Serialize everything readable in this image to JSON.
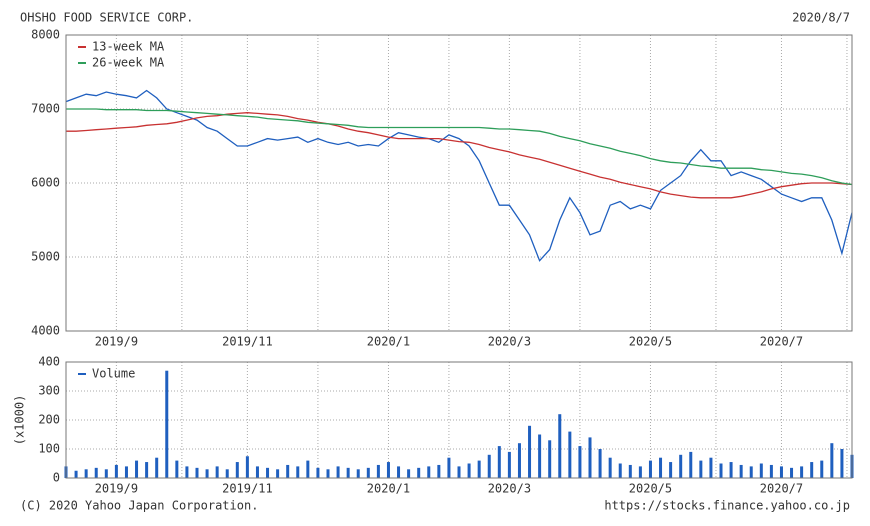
{
  "header": {
    "title": "OHSHO FOOD SERVICE CORP.",
    "date": "2020/8/7"
  },
  "footer": {
    "copyright": "(C) 2020 Yahoo Japan Corporation.",
    "url": "https://stocks.finance.yahoo.co.jp"
  },
  "chart_data": [
    {
      "type": "line",
      "categories": [
        null,
        null,
        null,
        null,
        null,
        "2019/9",
        null,
        null,
        null,
        null,
        null,
        null,
        null,
        null,
        null,
        null,
        null,
        null,
        "2019/11",
        null,
        null,
        null,
        null,
        null,
        null,
        null,
        null,
        null,
        null,
        null,
        null,
        null,
        "2020/1",
        null,
        null,
        null,
        null,
        null,
        null,
        null,
        null,
        null,
        null,
        null,
        "2020/3",
        null,
        null,
        null,
        null,
        null,
        null,
        null,
        null,
        null,
        null,
        null,
        null,
        null,
        "2020/5",
        null,
        null,
        null,
        null,
        null,
        null,
        null,
        null,
        null,
        null,
        null,
        null,
        "2020/7",
        null,
        null,
        null,
        null,
        null,
        null,
        null
      ],
      "ylim": [
        4000,
        8000
      ],
      "yticks": [
        4000,
        5000,
        6000,
        7000,
        8000
      ],
      "grid": true,
      "legend": "upper left",
      "series": [
        {
          "color": "#1f5fbf",
          "values": [
            7100,
            7150,
            7200,
            7180,
            7230,
            7200,
            7180,
            7150,
            7250,
            7150,
            7000,
            6950,
            6900,
            6850,
            6750,
            6700,
            6600,
            6500,
            6500,
            6550,
            6600,
            6580,
            6600,
            6620,
            6550,
            6600,
            6550,
            6520,
            6550,
            6500,
            6520,
            6500,
            6600,
            6680,
            6650,
            6620,
            6600,
            6550,
            6650,
            6600,
            6500,
            6300,
            6000,
            5700,
            5700,
            5500,
            5300,
            4950,
            5100,
            5500,
            5800,
            5600,
            5300,
            5350,
            5700,
            5750,
            5650,
            5700,
            5650,
            5900,
            6000,
            6100,
            6300,
            6450,
            6300,
            6300,
            6100,
            6150,
            6100,
            6050,
            5950,
            5850,
            5800,
            5750,
            5800,
            5800,
            5500,
            5050,
            5600
          ]
        },
        {
          "name": "13-week MA",
          "color": "#c83232",
          "values": [
            6700,
            6700,
            6710,
            6720,
            6730,
            6740,
            6750,
            6760,
            6780,
            6790,
            6800,
            6820,
            6850,
            6880,
            6900,
            6910,
            6930,
            6940,
            6950,
            6940,
            6930,
            6920,
            6900,
            6870,
            6850,
            6820,
            6800,
            6770,
            6730,
            6700,
            6680,
            6650,
            6620,
            6600,
            6600,
            6600,
            6600,
            6600,
            6580,
            6560,
            6550,
            6520,
            6480,
            6450,
            6420,
            6380,
            6350,
            6320,
            6280,
            6240,
            6200,
            6160,
            6120,
            6080,
            6050,
            6010,
            5980,
            5950,
            5920,
            5880,
            5850,
            5830,
            5810,
            5800,
            5800,
            5800,
            5800,
            5820,
            5850,
            5880,
            5920,
            5950,
            5970,
            5990,
            6000,
            6000,
            6000,
            5990,
            5980
          ]
        },
        {
          "name": "26-week MA",
          "color": "#2e9e5a",
          "values": [
            7000,
            7000,
            7000,
            7000,
            6990,
            6990,
            6990,
            6990,
            6980,
            6980,
            6980,
            6970,
            6960,
            6950,
            6940,
            6930,
            6920,
            6910,
            6900,
            6890,
            6870,
            6860,
            6850,
            6840,
            6820,
            6810,
            6800,
            6790,
            6780,
            6760,
            6750,
            6750,
            6750,
            6750,
            6750,
            6750,
            6750,
            6750,
            6750,
            6750,
            6750,
            6750,
            6740,
            6730,
            6730,
            6720,
            6710,
            6700,
            6670,
            6630,
            6600,
            6570,
            6530,
            6500,
            6470,
            6430,
            6400,
            6370,
            6330,
            6300,
            6280,
            6270,
            6250,
            6230,
            6220,
            6200,
            6200,
            6200,
            6200,
            6180,
            6170,
            6150,
            6130,
            6120,
            6100,
            6070,
            6030,
            6000,
            5980
          ]
        }
      ]
    },
    {
      "type": "bar",
      "categories": [
        null,
        null,
        null,
        null,
        null,
        "2019/9",
        null,
        null,
        null,
        null,
        null,
        null,
        null,
        null,
        null,
        null,
        null,
        null,
        "2019/11",
        null,
        null,
        null,
        null,
        null,
        null,
        null,
        null,
        null,
        null,
        null,
        null,
        null,
        "2020/1",
        null,
        null,
        null,
        null,
        null,
        null,
        null,
        null,
        null,
        null,
        null,
        "2020/3",
        null,
        null,
        null,
        null,
        null,
        null,
        null,
        null,
        null,
        null,
        null,
        null,
        null,
        "2020/5",
        null,
        null,
        null,
        null,
        null,
        null,
        null,
        null,
        null,
        null,
        null,
        null,
        "2020/7",
        null,
        null,
        null,
        null,
        null,
        null,
        null
      ],
      "y_label": "(x1000)",
      "ylim": [
        0,
        400
      ],
      "yticks": [
        0,
        100,
        200,
        300,
        400
      ],
      "grid": true,
      "legend": "upper left",
      "series": [
        {
          "name": "Volume",
          "color": "#1f5fbf",
          "values": [
            40,
            25,
            30,
            35,
            30,
            45,
            40,
            60,
            55,
            70,
            370,
            60,
            40,
            35,
            30,
            40,
            30,
            55,
            75,
            40,
            35,
            30,
            45,
            40,
            60,
            35,
            30,
            40,
            35,
            30,
            35,
            45,
            55,
            40,
            30,
            35,
            40,
            45,
            70,
            40,
            50,
            60,
            80,
            110,
            90,
            120,
            180,
            150,
            130,
            220,
            160,
            110,
            140,
            100,
            70,
            50,
            45,
            40,
            60,
            70,
            55,
            80,
            90,
            60,
            70,
            50,
            55,
            45,
            40,
            50,
            45,
            40,
            35,
            40,
            55,
            60,
            120,
            100,
            80
          ]
        }
      ]
    }
  ]
}
